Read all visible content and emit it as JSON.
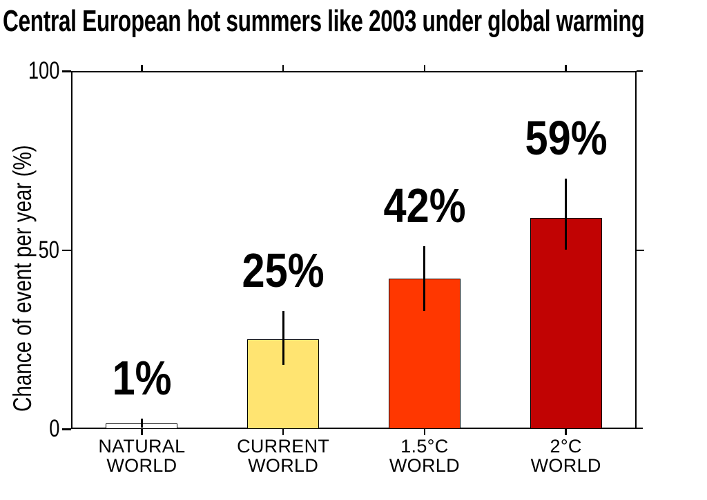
{
  "chart_data": {
    "type": "bar",
    "title": "Central European hot summers like 2003 under global warming",
    "ylabel": "Chance of event per year (%)",
    "xlabel": "",
    "ylim": [
      0,
      100
    ],
    "yticks": [
      0,
      50,
      100
    ],
    "ytick_labels": [
      "0",
      "50",
      "100"
    ],
    "grid": false,
    "legend": "none",
    "categories": [
      "NATURAL WORLD",
      "CURRENT WORLD",
      "1.5°C WORLD",
      "2°C WORLD"
    ],
    "category_label_lines": [
      [
        "NATURAL",
        "WORLD"
      ],
      [
        "CURRENT",
        "WORLD"
      ],
      [
        "1.5°C",
        "WORLD"
      ],
      [
        "2°C",
        "WORLD"
      ]
    ],
    "values": [
      1,
      25,
      42,
      59
    ],
    "value_labels": [
      "1%",
      "25%",
      "42%",
      "59%"
    ],
    "error_low": [
      0.3,
      18,
      33,
      50
    ],
    "error_high": [
      2.8,
      33,
      51,
      70
    ],
    "bar_colors": [
      "#FFFFFF",
      "#FFE471",
      "#FF3700",
      "#C10303"
    ],
    "bar_border_color": "#000000",
    "axis_color": "#000000",
    "text_color": "#000000",
    "background_color": "#FFFFFF"
  }
}
